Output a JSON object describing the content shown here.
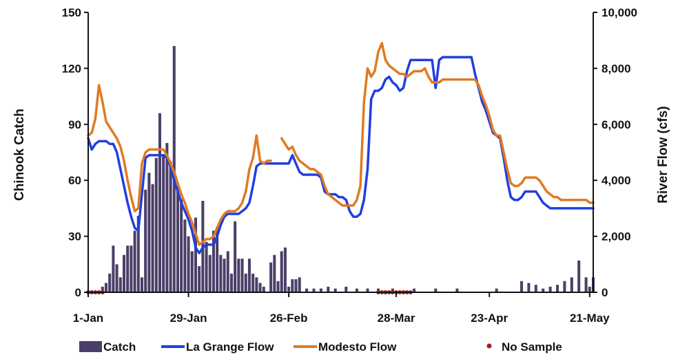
{
  "chart_data": {
    "type": "bar+line",
    "ylabel": "Chinook Catch",
    "y2label": "River Flow (cfs)",
    "ylim": [
      0,
      150
    ],
    "y2lim": [
      0,
      10000
    ],
    "yticks": [
      0,
      30,
      60,
      90,
      120,
      150
    ],
    "yticks_label": [
      "0",
      "30",
      "60",
      "90",
      "120",
      "150"
    ],
    "y2ticks": [
      0,
      2000,
      4000,
      6000,
      8000,
      10000
    ],
    "y2ticks_label": [
      "0",
      "2,000",
      "4,000",
      "6,000",
      "8,000",
      "10,000"
    ],
    "x_start": "1-Jan",
    "x_range_days": [
      1,
      142
    ],
    "xticks": [
      {
        "day": 1,
        "label": "1-Jan"
      },
      {
        "day": 29,
        "label": "29-Jan"
      },
      {
        "day": 57,
        "label": "26-Feb"
      },
      {
        "day": 87,
        "label": "28-Mar"
      },
      {
        "day": 113,
        "label": "23-Apr"
      },
      {
        "day": 141,
        "label": "21-May"
      }
    ],
    "grid": false,
    "legend": [
      {
        "name": "Catch",
        "kind": "bar",
        "color": "#4a3f68"
      },
      {
        "name": "La Grange Flow",
        "kind": "line",
        "color": "#1f3fe0"
      },
      {
        "name": "Modesto Flow",
        "kind": "line",
        "color": "#e07a22"
      },
      {
        "name": "No Sample",
        "kind": "marker",
        "color": "#b01818"
      }
    ],
    "legend_position": "bottom",
    "catch": {
      "name": "Catch",
      "x": [
        5,
        6,
        7,
        8,
        9,
        10,
        11,
        12,
        13,
        14,
        15,
        16,
        17,
        18,
        19,
        20,
        21,
        22,
        23,
        24,
        25,
        26,
        27,
        28,
        29,
        30,
        31,
        32,
        33,
        34,
        35,
        36,
        37,
        38,
        39,
        40,
        41,
        42,
        43,
        44,
        45,
        46,
        47,
        48,
        49,
        50,
        52,
        53,
        54,
        55,
        56,
        57,
        58,
        59,
        60,
        62,
        64,
        66,
        68,
        70,
        73,
        76,
        79,
        82,
        86,
        92,
        98,
        104,
        115,
        122,
        124,
        126,
        128,
        130,
        132,
        134,
        136,
        138,
        140,
        141,
        142
      ],
      "values": [
        3,
        5,
        10,
        25,
        15,
        8,
        20,
        25,
        25,
        33,
        41,
        8,
        55,
        64,
        58,
        72,
        96,
        74,
        80,
        70,
        132,
        57,
        50,
        39,
        30,
        22,
        40,
        14,
        49,
        27,
        20,
        33,
        35,
        20,
        18,
        22,
        10,
        38,
        18,
        18,
        10,
        18,
        10,
        8,
        5,
        3,
        16,
        20,
        6,
        22,
        24,
        3,
        7,
        7,
        8,
        2,
        2,
        2,
        3,
        2,
        3,
        2,
        2,
        2,
        2,
        2,
        2,
        2,
        2,
        6,
        5,
        4,
        2,
        3,
        4,
        6,
        8,
        17,
        8,
        3,
        8
      ],
      "color": "#4a3f68"
    },
    "series": [
      {
        "name": "La Grange Flow",
        "color": "#1f3fe0",
        "x": [
          1,
          2,
          3,
          4,
          5,
          6,
          7,
          8,
          9,
          10,
          11,
          12,
          13,
          14,
          15,
          16,
          17,
          18,
          19,
          20,
          21,
          22,
          23,
          24,
          25,
          26,
          27,
          28,
          29,
          30,
          31,
          32,
          33,
          34,
          35,
          36,
          37,
          38,
          39,
          40,
          41,
          42,
          43,
          44,
          45,
          46,
          47,
          48,
          49,
          50,
          51,
          52,
          53,
          54,
          55,
          56,
          57,
          58,
          59,
          60,
          61,
          62,
          63,
          64,
          65,
          66,
          67,
          68,
          69,
          70,
          71,
          72,
          73,
          74,
          75,
          76,
          77,
          78,
          79,
          80,
          81,
          82,
          83,
          84,
          85,
          86,
          87,
          88,
          89,
          90,
          91,
          92,
          93,
          94,
          95,
          96,
          97,
          98,
          99,
          100,
          101,
          102,
          103,
          104,
          105,
          106,
          107,
          108,
          109,
          110,
          111,
          112,
          113,
          114,
          115,
          116,
          117,
          118,
          119,
          120,
          121,
          122,
          123,
          124,
          125,
          126,
          127,
          128,
          129,
          130,
          131,
          132,
          133,
          134,
          135,
          136,
          137,
          138,
          139,
          140,
          141,
          142
        ],
        "values": [
          5500,
          5100,
          5300,
          5400,
          5400,
          5400,
          5300,
          5300,
          5000,
          4400,
          3800,
          3200,
          2700,
          2300,
          2200,
          3500,
          4800,
          4900,
          4900,
          4900,
          4900,
          4900,
          4800,
          4500,
          4000,
          3600,
          3200,
          2900,
          2600,
          2200,
          1600,
          1400,
          1600,
          1700,
          1700,
          1700,
          2000,
          2400,
          2700,
          2800,
          2800,
          2800,
          2800,
          2900,
          3000,
          3200,
          3800,
          4500,
          4600,
          4600,
          4600,
          4600,
          4600,
          4600,
          4600,
          4600,
          4600,
          4900,
          4600,
          4300,
          4200,
          4200,
          4200,
          4200,
          4200,
          4100,
          3600,
          3500,
          3500,
          3500,
          3400,
          3400,
          3300,
          2900,
          2700,
          2700,
          2800,
          3300,
          4400,
          6900,
          7200,
          7200,
          7300,
          7600,
          7700,
          7500,
          7400,
          7200,
          7300,
          7900,
          8300,
          8300,
          8300,
          8300,
          8300,
          8300,
          8300,
          7300,
          8300,
          8400,
          8400,
          8400,
          8400,
          8400,
          8400,
          8400,
          8400,
          8400,
          7800,
          7300,
          6800,
          6500,
          6100,
          5700,
          5600,
          5500,
          4800,
          4000,
          3400,
          3300,
          3300,
          3400,
          3600,
          3600,
          3600,
          3600,
          3400,
          3200,
          3100,
          3000,
          3000,
          3000,
          3000,
          3000,
          3000,
          3000,
          3000,
          3000,
          3000,
          3000,
          3000,
          3000
        ],
        "gaps_after_x": []
      },
      {
        "name": "Modesto Flow",
        "color": "#e07a22",
        "x": [
          1,
          2,
          3,
          4,
          5,
          6,
          7,
          8,
          9,
          10,
          11,
          12,
          13,
          14,
          15,
          16,
          17,
          18,
          19,
          20,
          21,
          22,
          23,
          24,
          25,
          26,
          27,
          28,
          29,
          30,
          31,
          32,
          33,
          34,
          35,
          36,
          37,
          38,
          39,
          40,
          41,
          42,
          43,
          44,
          45,
          46,
          47,
          48,
          49,
          50,
          51,
          52,
          53,
          54,
          55,
          56,
          57,
          58,
          59,
          60,
          61,
          62,
          63,
          64,
          65,
          66,
          67,
          68,
          69,
          70,
          71,
          72,
          73,
          74,
          75,
          76,
          77,
          78,
          79,
          80,
          81,
          82,
          83,
          84,
          85,
          86,
          87,
          88,
          89,
          90,
          91,
          92,
          93,
          94,
          95,
          96,
          97,
          98,
          99,
          100,
          101,
          102,
          103,
          104,
          105,
          106,
          107,
          108,
          109,
          110,
          111,
          112,
          113,
          114,
          115,
          116,
          117,
          118,
          119,
          120,
          121,
          122,
          123,
          124,
          125,
          126,
          127,
          128,
          129,
          130,
          131,
          132,
          133,
          134,
          135,
          136,
          137,
          138,
          139,
          140,
          141,
          142
        ],
        "values": [
          5600,
          5700,
          6200,
          7400,
          6800,
          6100,
          5900,
          5700,
          5500,
          5200,
          4700,
          4000,
          3400,
          2900,
          3000,
          4600,
          5000,
          5100,
          5100,
          5100,
          5100,
          5100,
          4900,
          4600,
          4300,
          3900,
          3500,
          3200,
          2800,
          2500,
          2100,
          1700,
          1800,
          1900,
          1900,
          2000,
          2300,
          2600,
          2800,
          2900,
          2900,
          2900,
          3000,
          3200,
          3600,
          4400,
          4800,
          5600,
          4700,
          4600,
          4700,
          4700,
          null,
          null,
          5500,
          5300,
          5100,
          5200,
          4900,
          4700,
          4600,
          4500,
          4400,
          4400,
          4300,
          4200,
          3800,
          3500,
          3400,
          3300,
          3200,
          3100,
          3100,
          3100,
          3100,
          3300,
          3800,
          6800,
          8000,
          7700,
          7900,
          8600,
          8900,
          8300,
          8100,
          8000,
          7900,
          7800,
          7800,
          7700,
          7800,
          7900,
          7900,
          7900,
          8000,
          7700,
          7500,
          7500,
          7500,
          7600,
          7600,
          7600,
          7600,
          7600,
          7600,
          7600,
          7600,
          7600,
          7600,
          7400,
          7000,
          6700,
          6300,
          5800,
          5600,
          5600,
          5000,
          4400,
          3900,
          3800,
          3800,
          3900,
          4100,
          4100,
          4100,
          4100,
          4000,
          3800,
          3600,
          3500,
          3400,
          3400,
          3300,
          3300,
          3300,
          3300,
          3300,
          3300,
          3300,
          3300,
          3200,
          3200
        ],
        "gaps_after_x": []
      }
    ],
    "no_sample": {
      "name": "No Sample",
      "x": [
        1,
        2,
        3,
        4,
        5,
        82,
        83,
        84,
        85,
        86,
        87,
        88,
        89,
        90,
        91
      ],
      "value": 0,
      "color": "#b01818"
    }
  }
}
